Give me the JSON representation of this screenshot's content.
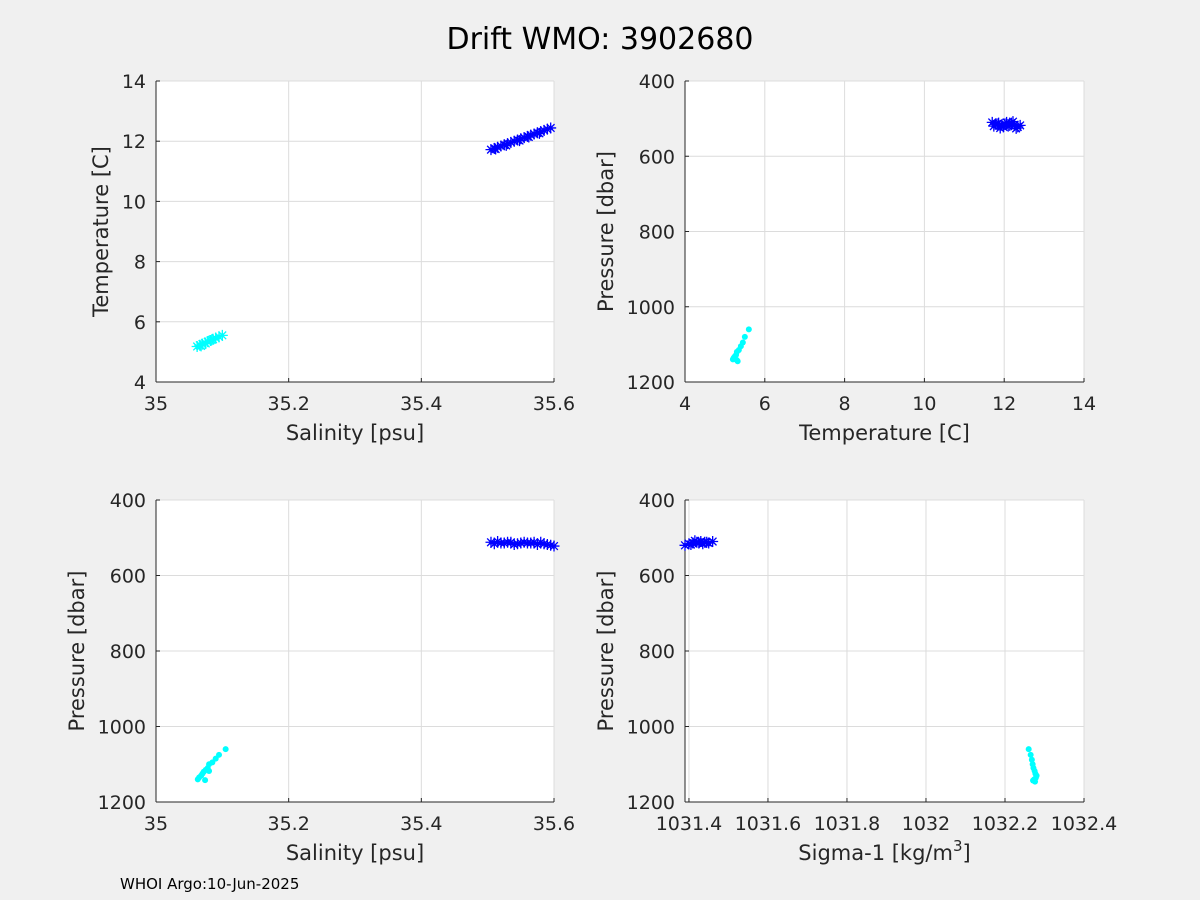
{
  "figure": {
    "title": "Drift WMO: 3902680",
    "footer": "WHOI Argo:10-Jun-2025"
  },
  "colors": {
    "background": "#f0f0f0",
    "axes_bg": "#ffffff",
    "grid": "#dcdcdc",
    "axis": "#262626",
    "series_shallow": "#0000ff",
    "series_deep": "#00ffff"
  },
  "chart_data": [
    {
      "type": "scatter",
      "position": "top-left",
      "xlabel": "Salinity [psu]",
      "ylabel": "Temperature [C]",
      "xlim": [
        35,
        35.6
      ],
      "ylim": [
        4,
        14
      ],
      "y_reversed": false,
      "grid": true,
      "xticks": [
        "35",
        "35.2",
        "35.4",
        "35.6"
      ],
      "yticks": [
        "4",
        "6",
        "8",
        "10",
        "12",
        "14"
      ],
      "series": [
        {
          "marker": "asterisk",
          "color": "#0000ff",
          "x": [
            35.505,
            35.51,
            35.515,
            35.52,
            35.525,
            35.53,
            35.535,
            35.54,
            35.545,
            35.55,
            35.555,
            35.56,
            35.565,
            35.57,
            35.575,
            35.58,
            35.585,
            35.59,
            35.595,
            35.512,
            35.528,
            35.548,
            35.562,
            35.578
          ],
          "y": [
            11.72,
            11.76,
            11.8,
            11.84,
            11.88,
            11.92,
            11.96,
            12.0,
            12.04,
            12.08,
            12.12,
            12.16,
            12.2,
            12.24,
            12.28,
            12.32,
            12.36,
            12.4,
            12.44,
            11.74,
            11.86,
            12.02,
            12.14,
            12.26
          ]
        },
        {
          "marker": "asterisk",
          "color": "#00ffff",
          "x": [
            35.062,
            35.066,
            35.07,
            35.074,
            35.078,
            35.082,
            35.086,
            35.09,
            35.095,
            35.1,
            35.068,
            35.075,
            35.084
          ],
          "y": [
            5.18,
            5.22,
            5.26,
            5.3,
            5.34,
            5.38,
            5.42,
            5.46,
            5.5,
            5.55,
            5.2,
            5.28,
            5.4
          ]
        }
      ]
    },
    {
      "type": "scatter",
      "position": "top-right",
      "xlabel": "Temperature [C]",
      "ylabel": "Pressure [dbar]",
      "xlim": [
        4,
        14
      ],
      "ylim": [
        400,
        1200
      ],
      "y_reversed": true,
      "grid": true,
      "xticks": [
        "4",
        "6",
        "8",
        "10",
        "12",
        "14"
      ],
      "yticks": [
        "400",
        "600",
        "800",
        "1000",
        "1200"
      ],
      "series": [
        {
          "marker": "asterisk",
          "color": "#0000ff",
          "x": [
            11.7,
            11.78,
            11.86,
            11.94,
            12.02,
            12.1,
            12.18,
            12.26,
            12.34,
            11.74,
            11.9,
            12.06,
            12.22,
            12.4,
            11.82,
            11.98,
            12.14,
            12.3
          ],
          "y": [
            510,
            515,
            512,
            518,
            514,
            520,
            512,
            516,
            522,
            520,
            525,
            510,
            508,
            518,
            514,
            522,
            518,
            526
          ]
        },
        {
          "marker": "dot",
          "color": "#00ffff",
          "x": [
            5.6,
            5.5,
            5.45,
            5.4,
            5.35,
            5.3,
            5.28,
            5.25,
            5.22,
            5.2,
            5.3,
            5.32
          ],
          "y": [
            1060,
            1080,
            1095,
            1105,
            1115,
            1120,
            1128,
            1132,
            1136,
            1140,
            1142,
            1145
          ]
        }
      ]
    },
    {
      "type": "scatter",
      "position": "bottom-left",
      "xlabel": "Salinity [psu]",
      "ylabel": "Pressure [dbar]",
      "xlim": [
        35,
        35.6
      ],
      "ylim": [
        400,
        1200
      ],
      "y_reversed": true,
      "grid": true,
      "xticks": [
        "35",
        "35.2",
        "35.4",
        "35.6"
      ],
      "yticks": [
        "400",
        "600",
        "800",
        "1000",
        "1200"
      ],
      "series": [
        {
          "marker": "asterisk",
          "color": "#0000ff",
          "x": [
            35.505,
            35.515,
            35.525,
            35.535,
            35.545,
            35.555,
            35.565,
            35.575,
            35.585,
            35.595,
            35.51,
            35.53,
            35.55,
            35.57,
            35.59,
            35.52,
            35.54,
            35.56,
            35.58,
            35.6
          ],
          "y": [
            512,
            510,
            514,
            512,
            516,
            512,
            514,
            518,
            516,
            520,
            516,
            512,
            514,
            512,
            518,
            514,
            518,
            514,
            512,
            522
          ]
        },
        {
          "marker": "dot",
          "color": "#00ffff",
          "x": [
            35.105,
            35.095,
            35.09,
            35.085,
            35.08,
            35.078,
            35.075,
            35.072,
            35.07,
            35.068,
            35.065,
            35.063,
            35.08,
            35.074
          ],
          "y": [
            1060,
            1075,
            1085,
            1095,
            1100,
            1110,
            1115,
            1120,
            1125,
            1130,
            1135,
            1140,
            1118,
            1142
          ]
        }
      ]
    },
    {
      "type": "scatter",
      "position": "bottom-right",
      "xlabel": "Sigma-1 [kg/m",
      "xlabel_superscript": "3",
      "xlabel_suffix": "]",
      "ylabel": "Pressure [dbar]",
      "xlim": [
        1031.39,
        1032.4
      ],
      "ylim": [
        400,
        1200
      ],
      "y_reversed": true,
      "grid": true,
      "xticks": [
        "1031.4",
        "1031.6",
        "1031.8",
        "1032",
        "1032.2",
        "1032.4"
      ],
      "xtick_values": [
        1031.4,
        1031.6,
        1031.8,
        1032,
        1032.2,
        1032.4
      ],
      "yticks": [
        "400",
        "600",
        "800",
        "1000",
        "1200"
      ],
      "series": [
        {
          "marker": "asterisk",
          "color": "#0000ff",
          "x": [
            1031.39,
            1031.4,
            1031.41,
            1031.42,
            1031.43,
            1031.44,
            1031.45,
            1031.46,
            1031.405,
            1031.425,
            1031.445,
            1031.415,
            1031.435
          ],
          "y": [
            520,
            516,
            514,
            512,
            510,
            512,
            514,
            510,
            518,
            514,
            512,
            508,
            516
          ]
        },
        {
          "marker": "dot",
          "color": "#00ffff",
          "x": [
            1032.26,
            1032.265,
            1032.268,
            1032.27,
            1032.272,
            1032.275,
            1032.277,
            1032.28,
            1032.278,
            1032.274,
            1032.271,
            1032.276
          ],
          "y": [
            1060,
            1075,
            1088,
            1100,
            1110,
            1118,
            1125,
            1130,
            1136,
            1140,
            1143,
            1146
          ]
        }
      ]
    }
  ]
}
